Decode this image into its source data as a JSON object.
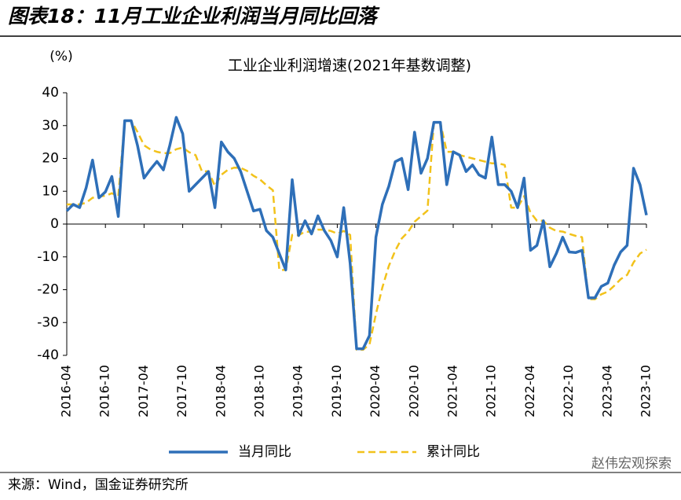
{
  "header": {
    "title": "图表18：11月工业企业利润当月同比回落"
  },
  "chart_data": {
    "type": "line",
    "title": "工业企业利润增速(2021年基数调整)",
    "y_unit": "(%)",
    "categories": [
      "2016-04",
      null,
      null,
      null,
      null,
      null,
      "2016-10",
      null,
      null,
      null,
      null,
      null,
      "2017-04",
      null,
      null,
      null,
      null,
      null,
      "2017-10",
      null,
      null,
      null,
      null,
      null,
      "2018-04",
      null,
      null,
      null,
      null,
      null,
      "2018-10",
      null,
      null,
      null,
      null,
      null,
      "2019-04",
      null,
      null,
      null,
      null,
      null,
      "2019-10",
      null,
      null,
      null,
      null,
      null,
      "2020-04",
      null,
      null,
      null,
      null,
      null,
      "2020-10",
      null,
      null,
      null,
      null,
      null,
      "2021-04",
      null,
      null,
      null,
      null,
      null,
      "2021-10",
      null,
      null,
      null,
      null,
      null,
      "2022-04",
      null,
      null,
      null,
      null,
      null,
      "2022-10",
      null,
      null,
      null,
      null,
      null,
      "2023-04",
      null,
      null,
      null,
      null,
      null,
      "2023-10"
    ],
    "series": [
      {
        "name": "当月同比",
        "color": "#2e6fb8",
        "dashed": false,
        "values": [
          4,
          6,
          5,
          11,
          19.5,
          8,
          9.8,
          14.5,
          2.3,
          31.5,
          31.5,
          23.8,
          14,
          16.7,
          19.1,
          16.5,
          24,
          32.5,
          27.5,
          10,
          12,
          14,
          16,
          5,
          25,
          22,
          20,
          16,
          10,
          4,
          4.5,
          -2,
          -4,
          -9,
          -14,
          13.5,
          -3.5,
          1,
          -3,
          2.5,
          -2,
          -5,
          -10,
          5,
          -12,
          -38,
          -38,
          -34,
          -4,
          6,
          11.5,
          19,
          20,
          10.5,
          28,
          15.5,
          20,
          31,
          31,
          12,
          22,
          21,
          16,
          18,
          15,
          14,
          26.5,
          12,
          12,
          10,
          5,
          14,
          -8,
          -6.5,
          1,
          -13,
          -9,
          -4,
          -8.5,
          -8.7,
          -8,
          -22.5,
          -22.5,
          -19,
          -18,
          -12.5,
          -8.5,
          -6.5,
          17,
          12,
          2.7
        ]
      },
      {
        "name": "累计同比",
        "color": "#f2c21b",
        "dashed": true,
        "values": [
          6,
          6,
          6,
          6.5,
          8,
          8.4,
          8.6,
          9.4,
          8.5,
          31.5,
          31.5,
          28,
          24,
          22.7,
          22,
          21.6,
          21.6,
          22.8,
          23.3,
          21.9,
          21,
          16,
          16.1,
          11.6,
          15,
          16.5,
          17.2,
          17.1,
          16.2,
          14.7,
          13.6,
          11.8,
          10.3,
          -14,
          -14,
          -3.3,
          -3.4,
          -2.3,
          -2.4,
          -1.7,
          -1.7,
          -2.1,
          -2.9,
          -2.1,
          -3.3,
          -38.3,
          -38.3,
          -36.7,
          -27.4,
          -19.3,
          -12.8,
          -8.1,
          -4.4,
          -2.4,
          0.7,
          2.4,
          4.1,
          31,
          31,
          22,
          22,
          21,
          20.5,
          20,
          19.5,
          19,
          18.5,
          18.5,
          18,
          5,
          5,
          8.5,
          3.5,
          1,
          1,
          -1.1,
          -2.1,
          -2.3,
          -3,
          -3.6,
          -4,
          -22.9,
          -22.9,
          -21.4,
          -20.6,
          -18.8,
          -16.8,
          -15.5,
          -11.7,
          -9,
          -7.8
        ]
      }
    ],
    "ylim": [
      -40,
      40
    ],
    "yticks": [
      -40,
      -30,
      -20,
      -10,
      0,
      10,
      20,
      30,
      40
    ],
    "grid": false,
    "legend": "bottom"
  },
  "footer": {
    "source": "来源：Wind，国金证券研究所",
    "watermark": "赵伟宏观探索"
  }
}
